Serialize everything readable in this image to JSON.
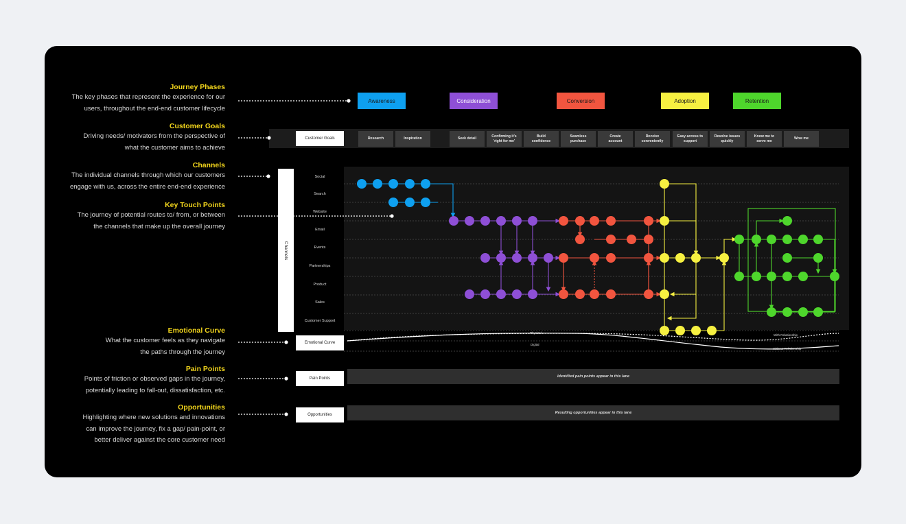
{
  "legend": [
    {
      "title": "Journey Phases",
      "desc": [
        "The key phases that represent the experience for our",
        "users, throughout the end-end customer lifecycle"
      ]
    },
    {
      "title": "Customer Goals",
      "desc": [
        "Driving needs/ motivators from the perspective of",
        "what the customer aims to achieve"
      ]
    },
    {
      "title": "Channels",
      "desc": [
        "The individual channels through which our customers",
        "engage with us, across the entire end-end experience"
      ]
    },
    {
      "title": "Key Touch Points",
      "desc": [
        "The journey of potential routes to/ from, or between",
        "the channels that make up the overall journey"
      ]
    },
    {
      "title": "Emotional Curve",
      "desc": [
        "What the customer feels as they navigate",
        "the paths through the journey"
      ]
    },
    {
      "title": "Pain Points",
      "desc": [
        "Points of friction or observed gaps in the journey,",
        "potentially leading to fall-out, dissatisfaction, etc."
      ]
    },
    {
      "title": "Opportunities",
      "desc": [
        "Highlighting where new solutions and innovations",
        "can improve the journey, fix a gap/ pain-point, or",
        "better deliver against the core customer need"
      ]
    }
  ],
  "phases": [
    {
      "label": "Awareness",
      "color": "#0ea0f0",
      "text": "#1a1a1a"
    },
    {
      "label": "Consideration",
      "color": "#8e4fd6",
      "text": "#ffffff"
    },
    {
      "label": "Conversion",
      "color": "#f2553f",
      "text": "#1a1a1a"
    },
    {
      "label": "Adoption",
      "color": "#f6f041",
      "text": "#1a1a1a"
    },
    {
      "label": "Retention",
      "color": "#4ed62c",
      "text": "#1a1a1a"
    }
  ],
  "customer_goals_label": "Customer Goals",
  "goals": [
    [
      "Research"
    ],
    [
      "Inspiration"
    ],
    [
      "Seek detail"
    ],
    [
      "Confirming it's",
      "'right for me'"
    ],
    [
      "Build",
      "confidence"
    ],
    [
      "Seamless",
      "purchase"
    ],
    [
      "Create",
      "account"
    ],
    [
      "Receive",
      "conveniently"
    ],
    [
      "Easy access to",
      "support"
    ],
    [
      "Resolve issues",
      "quickly"
    ],
    [
      "Know me to",
      "serve me"
    ],
    [
      "Wow me"
    ]
  ],
  "channels_label": "Channels",
  "channels": [
    "Social",
    "Search",
    "Website",
    "Email",
    "Events",
    "Partnerships",
    "Product",
    "Sales",
    "Customer Support"
  ],
  "emotional_curve": {
    "label": "Emotional Curve",
    "physical": "Physical",
    "digital": "Digital",
    "with_rel": "With Relationship",
    "without_rel": "Without Relationship"
  },
  "pain_points": {
    "label": "Pain Points",
    "lane": "Identified pain points appear in this lane"
  },
  "opportunities": {
    "label": "Opportunities",
    "lane": "Resulting opportunities appear in this lane"
  }
}
